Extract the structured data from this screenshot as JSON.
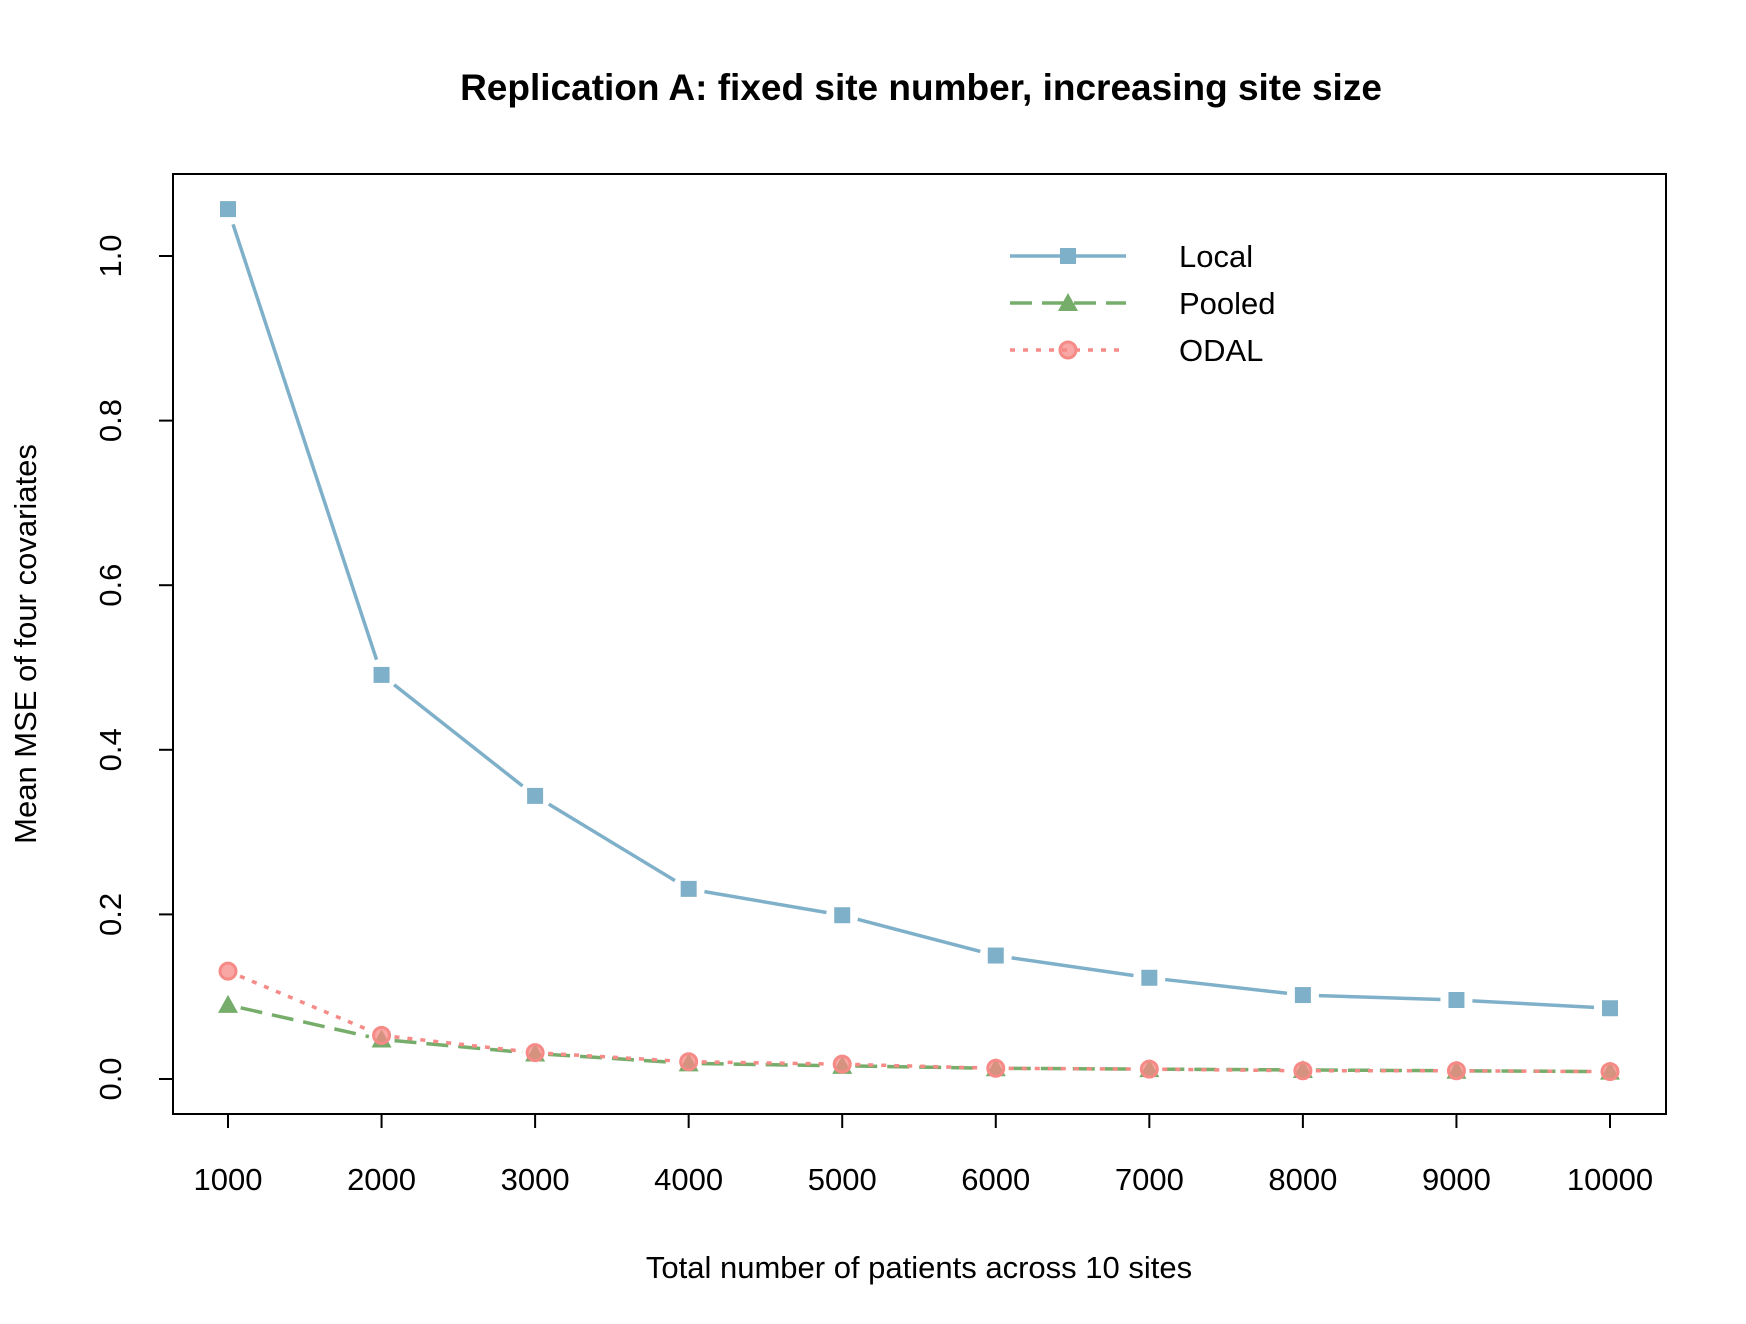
{
  "chart_data": {
    "type": "line",
    "title": "Replication A: fixed site number, increasing site size",
    "xlabel": "Total number of patients across 10 sites",
    "ylabel": "Mean MSE of four covariates",
    "x": [
      1000,
      2000,
      3000,
      4000,
      5000,
      6000,
      7000,
      8000,
      9000,
      10000
    ],
    "x_tick_labels": [
      "1000",
      "2000",
      "3000",
      "4000",
      "5000",
      "6000",
      "7000",
      "8000",
      "9000",
      "10000"
    ],
    "y_ticks": [
      0.0,
      0.2,
      0.4,
      0.6,
      0.8,
      1.0
    ],
    "y_tick_labels": [
      "0.0",
      "0.2",
      "0.4",
      "0.6",
      "0.8",
      "1.0"
    ],
    "xlim": [
      1000,
      10000
    ],
    "ylim": [
      -0.04,
      1.1
    ],
    "grid": false,
    "legend_position": "top-right",
    "series": [
      {
        "name": "Local",
        "values": [
          1.057,
          0.491,
          0.344,
          0.231,
          0.199,
          0.15,
          0.123,
          0.102,
          0.096,
          0.086
        ],
        "color": "#7FB0C9",
        "line_style": "solid",
        "marker": "square"
      },
      {
        "name": "Pooled",
        "values": [
          0.09,
          0.048,
          0.031,
          0.019,
          0.016,
          0.013,
          0.012,
          0.011,
          0.01,
          0.009
        ],
        "color": "#76AD6A",
        "line_style": "dashed",
        "marker": "triangle"
      },
      {
        "name": "ODAL",
        "values": [
          0.131,
          0.053,
          0.032,
          0.021,
          0.018,
          0.013,
          0.012,
          0.01,
          0.01,
          0.009
        ],
        "color": "#F58A86",
        "line_style": "dotted",
        "marker": "circle"
      }
    ]
  }
}
